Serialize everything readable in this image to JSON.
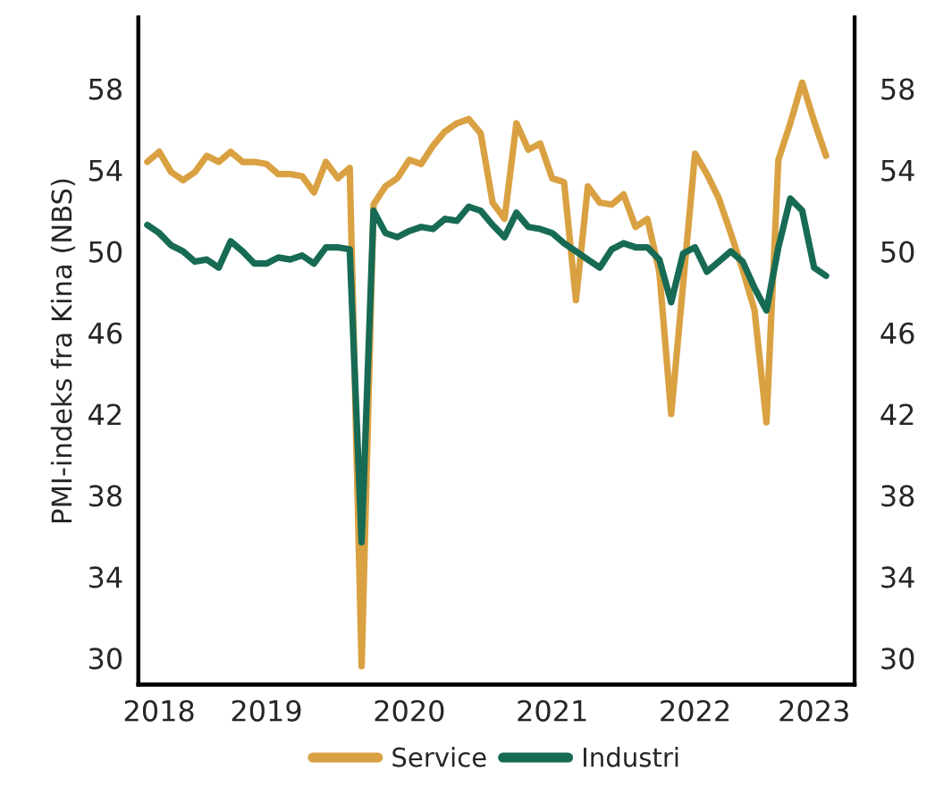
{
  "chart_data": {
    "type": "line",
    "ylabel": "PMI-indeks fra Kina (NBS)",
    "categories": [
      null,
      "2018",
      null,
      null,
      null,
      null,
      null,
      null,
      null,
      null,
      "2019",
      null,
      null,
      null,
      null,
      null,
      null,
      null,
      null,
      null,
      null,
      null,
      "2020",
      null,
      null,
      null,
      null,
      null,
      null,
      null,
      null,
      null,
      null,
      null,
      "2021",
      null,
      null,
      null,
      null,
      null,
      null,
      null,
      null,
      null,
      null,
      null,
      "2022",
      null,
      null,
      null,
      null,
      null,
      null,
      null,
      null,
      null,
      "2023",
      null
    ],
    "series": [
      {
        "name": "Service",
        "color": "#daa142",
        "values": [
          54.4,
          54.9,
          53.9,
          53.5,
          53.9,
          54.7,
          54.4,
          54.9,
          54.4,
          54.4,
          54.3,
          53.8,
          53.8,
          53.7,
          52.9,
          54.4,
          53.6,
          54.1,
          29.6,
          52.3,
          53.2,
          53.6,
          54.5,
          54.3,
          55.2,
          55.9,
          56.3,
          56.5,
          55.8,
          52.4,
          51.6,
          56.3,
          55.0,
          55.3,
          53.6,
          53.4,
          47.6,
          53.2,
          52.4,
          52.3,
          52.8,
          51.2,
          51.6,
          49.0,
          42.0,
          48.4,
          54.8,
          53.8,
          52.6,
          50.9,
          49.1,
          47.1,
          41.6,
          54.5,
          56.3,
          58.3,
          56.4,
          54.7
        ]
      },
      {
        "name": "Industri",
        "color": "#176b55",
        "values": [
          51.3,
          50.9,
          50.3,
          50.0,
          49.5,
          49.6,
          49.2,
          50.5,
          50.0,
          49.4,
          49.4,
          49.7,
          49.6,
          49.8,
          49.4,
          50.2,
          50.2,
          50.1,
          35.7,
          52.0,
          50.9,
          50.7,
          51.0,
          51.2,
          51.1,
          51.6,
          51.5,
          52.2,
          52.0,
          51.3,
          50.7,
          51.9,
          51.2,
          51.1,
          50.9,
          50.4,
          50.0,
          49.6,
          49.2,
          50.1,
          50.4,
          50.2,
          50.2,
          49.6,
          47.5,
          49.9,
          50.2,
          49.0,
          49.5,
          50.0,
          49.5,
          48.2,
          47.1,
          50.2,
          52.6,
          52.0,
          49.2,
          48.8
        ]
      }
    ],
    "ylim": [
      28.7,
      61.5
    ],
    "yticks": [
      30,
      34,
      38,
      42,
      46,
      50,
      54,
      58
    ],
    "y2lim": [
      28.7,
      61.5
    ],
    "y2ticks": [
      30,
      34,
      38,
      42,
      46,
      50,
      54,
      58
    ],
    "legend": "bottom",
    "grid": false,
    "line_style": "solid",
    "marker": "none"
  }
}
